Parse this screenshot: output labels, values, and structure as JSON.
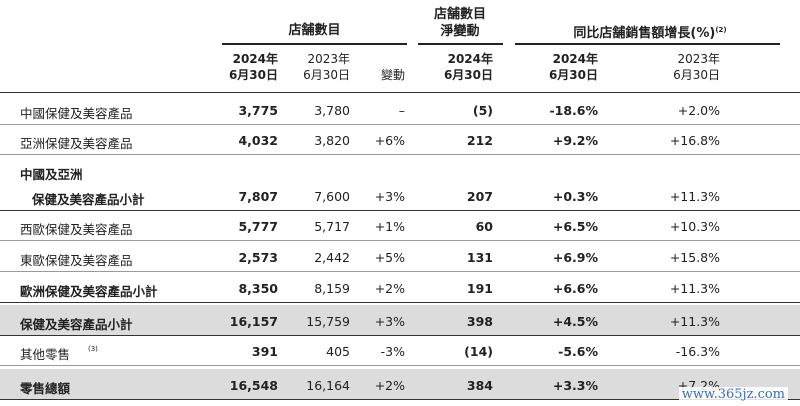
{
  "header": {
    "store_count": "店舗數目",
    "net_change_line1": "店舗數目",
    "net_change_line2": "淨變動",
    "sssg": "同比店舗銷售額增長(%)",
    "sssg_note": "(2)",
    "col_2024_year": "2024年",
    "col_2024_date": "6月30日",
    "col_2023_year": "2023年",
    "col_2023_date": "6月30日",
    "col_change": "變動",
    "net_2024_year": "2024年",
    "net_2024_date": "6月30日",
    "sssg_2024_year": "2024年",
    "sssg_2024_date": "6月30日",
    "sssg_2023_year": "2023年",
    "sssg_2023_date": "6月30日"
  },
  "rows": [
    {
      "label": "中國保健及美容產品",
      "label2": "",
      "note": "",
      "bold": false,
      "shaded": false,
      "v2024": "3,775",
      "v2023": "3,780",
      "change": "–",
      "net": "(5)",
      "s2024": "-18.6%",
      "s2023": "+2.0%"
    },
    {
      "label": "亞洲保健及美容產品",
      "label2": "",
      "note": "",
      "bold": false,
      "shaded": false,
      "v2024": "4,032",
      "v2023": "3,820",
      "change": "+6%",
      "net": "212",
      "s2024": "+9.2%",
      "s2023": "+16.8%"
    },
    {
      "label": "中國及亞洲",
      "label2": "保健及美容產品小計",
      "note": "",
      "bold": true,
      "shaded": false,
      "v2024": "7,807",
      "v2023": "7,600",
      "change": "+3%",
      "net": "207",
      "s2024": "+0.3%",
      "s2023": "+11.3%"
    },
    {
      "label": "西歐保健及美容產品",
      "label2": "",
      "note": "",
      "bold": false,
      "shaded": false,
      "v2024": "5,777",
      "v2023": "5,717",
      "change": "+1%",
      "net": "60",
      "s2024": "+6.5%",
      "s2023": "+10.3%"
    },
    {
      "label": "東歐保健及美容產品",
      "label2": "",
      "note": "",
      "bold": false,
      "shaded": false,
      "v2024": "2,573",
      "v2023": "2,442",
      "change": "+5%",
      "net": "131",
      "s2024": "+6.9%",
      "s2023": "+15.8%"
    },
    {
      "label": "歐洲保健及美容產品小計",
      "label2": "",
      "note": "",
      "bold": true,
      "shaded": false,
      "v2024": "8,350",
      "v2023": "8,159",
      "change": "+2%",
      "net": "191",
      "s2024": "+6.6%",
      "s2023": "+11.3%"
    },
    {
      "label": "保健及美容產品小計",
      "label2": "",
      "note": "",
      "bold": true,
      "shaded": true,
      "v2024": "16,157",
      "v2023": "15,759",
      "change": "+3%",
      "net": "398",
      "s2024": "+4.5%",
      "s2023": "+11.3%"
    },
    {
      "label": "其他零售",
      "label2": "",
      "note": "(3)",
      "bold": false,
      "shaded": false,
      "v2024": "391",
      "v2023": "405",
      "change": "-3%",
      "net": "(14)",
      "s2024": "-5.6%",
      "s2023": "-16.3%"
    },
    {
      "label": "零售總額",
      "label2": "",
      "note": "",
      "bold": true,
      "shaded": true,
      "v2024": "16,548",
      "v2023": "16,164",
      "change": "+2%",
      "net": "384",
      "s2024": "+3.3%",
      "s2023": "+7.2%"
    }
  ],
  "watermark": "www.365jz.com"
}
